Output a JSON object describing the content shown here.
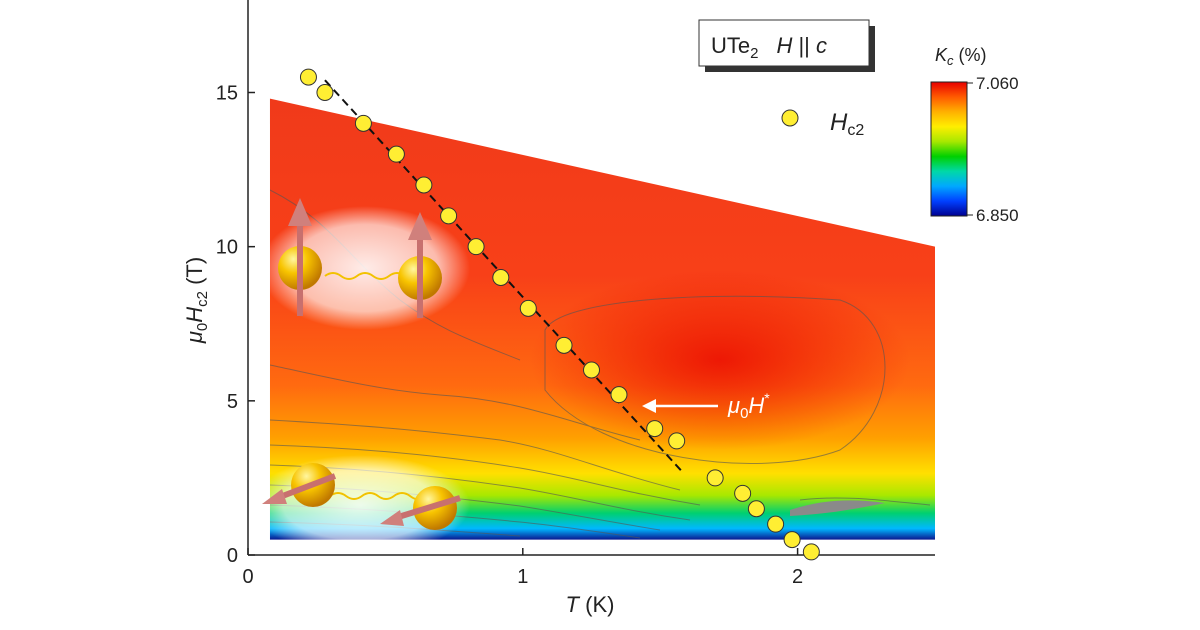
{
  "chart_data": {
    "type": "heatmap",
    "xlabel": {
      "main": "T",
      "unit": " (K)"
    },
    "ylabel": {
      "prefix": "μ",
      "sub0": "0",
      "H": "H",
      "subc2": "c2",
      "unit": " (T)"
    },
    "xlim": [
      0,
      2.5
    ],
    "ylim": [
      0,
      18
    ],
    "x_ticks": [
      {
        "v": 0,
        "label": "0"
      },
      {
        "v": 1,
        "label": "1"
      },
      {
        "v": 2,
        "label": "2"
      }
    ],
    "y_ticks": [
      {
        "v": 0,
        "label": "0"
      },
      {
        "v": 5,
        "label": "5"
      },
      {
        "v": 10,
        "label": "10"
      },
      {
        "v": 15,
        "label": "15"
      }
    ],
    "title_box": {
      "compound": "UTe",
      "compound_sub": "2",
      "field": "H",
      "parallel": " || ",
      "axis": "c"
    },
    "colorbar": {
      "label": "K",
      "label_sub": "c",
      "label_unit": " (%)",
      "max_label": "7.060",
      "min_label": "6.850",
      "colors": [
        "#e80000",
        "#ff5a00",
        "#ffb000",
        "#ffee00",
        "#a8e800",
        "#00d000",
        "#00d8a8",
        "#00a8ff",
        "#0040ff",
        "#000090"
      ]
    },
    "legend": {
      "name": "H",
      "name_sub": "c2",
      "color": "#ffee33"
    },
    "annotation": {
      "prefix": "μ",
      "sub": "0",
      "H": "H",
      "sup": "*",
      "x": 1.45,
      "y": 4.8
    },
    "hc2_points": [
      [
        0.22,
        15.5
      ],
      [
        0.28,
        15.0
      ],
      [
        0.42,
        14.0
      ],
      [
        0.54,
        13.0
      ],
      [
        0.64,
        12.0
      ],
      [
        0.73,
        11.0
      ],
      [
        0.83,
        10.0
      ],
      [
        0.92,
        9.0
      ],
      [
        1.02,
        8.0
      ],
      [
        1.15,
        6.8
      ],
      [
        1.25,
        6.0
      ],
      [
        1.35,
        5.2
      ],
      [
        1.48,
        4.1
      ],
      [
        1.56,
        3.7
      ],
      [
        1.7,
        2.5
      ],
      [
        1.8,
        2.0
      ],
      [
        1.85,
        1.5
      ],
      [
        1.92,
        1.0
      ],
      [
        1.98,
        0.5
      ],
      [
        2.05,
        0.1
      ]
    ],
    "fit_line": [
      [
        0.28,
        15.4
      ],
      [
        1.58,
        2.7
      ]
    ],
    "map_region": {
      "x_min": 0.08,
      "x_max": 2.5,
      "y_bottom": 0.5,
      "y_top_left": 14.8,
      "y_top_right": 10.0
    }
  }
}
